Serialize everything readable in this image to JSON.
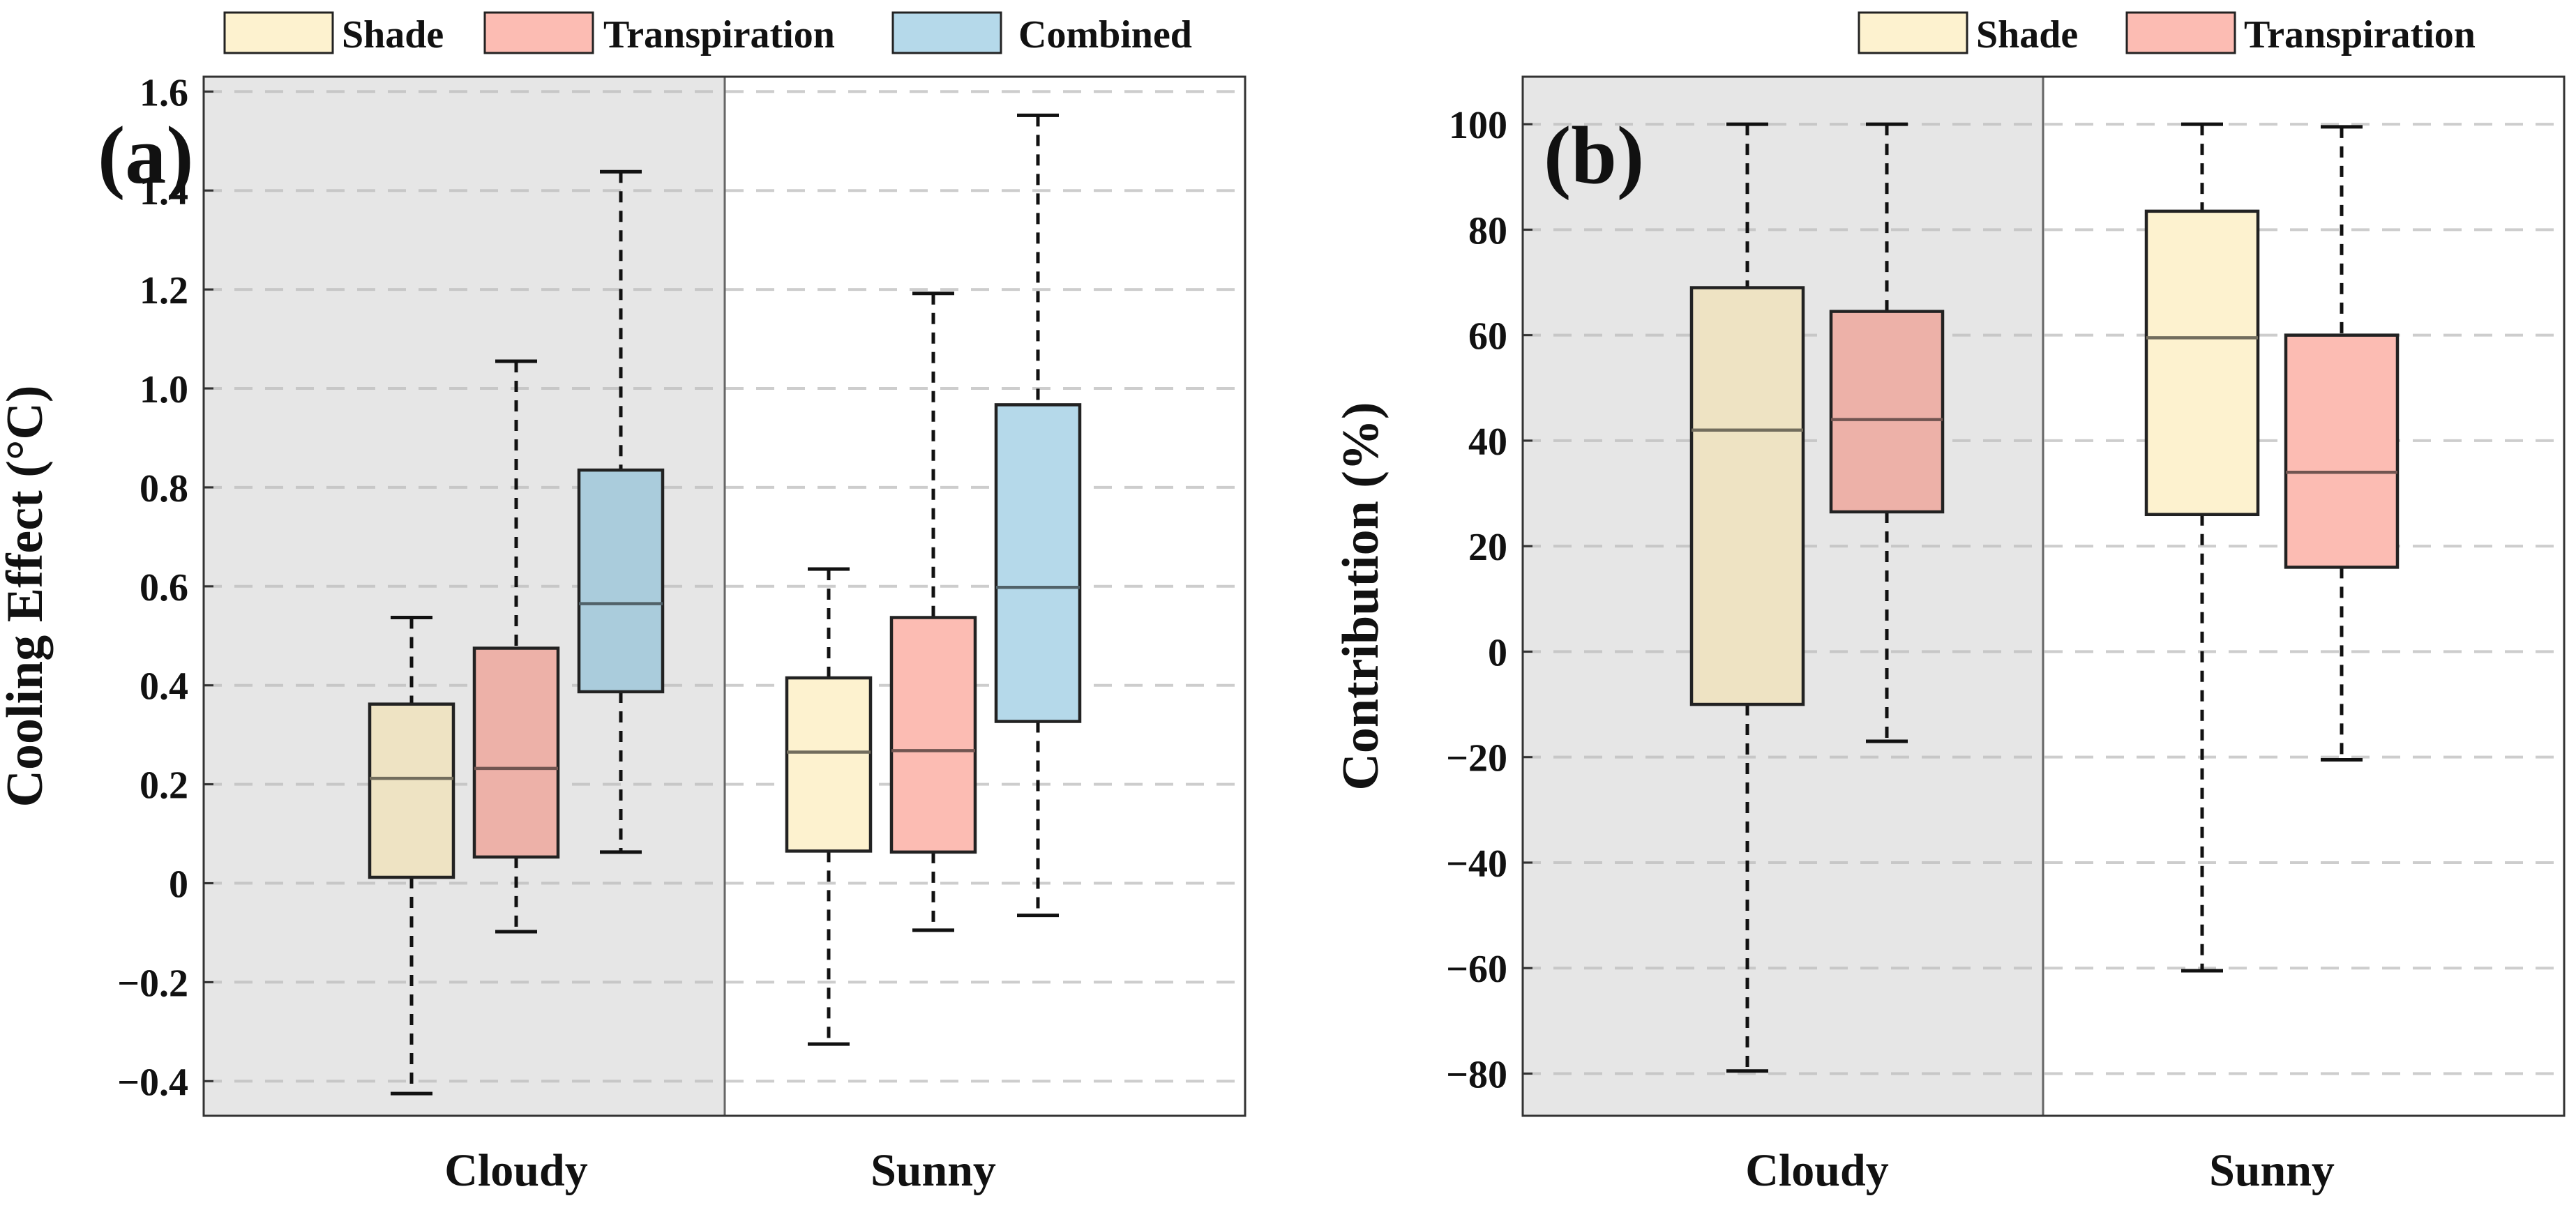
{
  "colors": {
    "Shade": "#fdf2cf",
    "Transpiration": "#fcbcb3",
    "Combined": "#b5d9ea",
    "cloudy_region": "#e6e6e6",
    "sunny_region": "#ffffff"
  },
  "chart_data": [
    {
      "type": "boxplot",
      "panel_label": "(a)",
      "ylabel": "Cooling Effect (°C)",
      "xlabel": "",
      "ylim": [
        -0.47,
        1.63
      ],
      "yticks": [
        -0.4,
        -0.2,
        0,
        0.2,
        0.4,
        0.6,
        0.8,
        1.0,
        1.2,
        1.4,
        1.6
      ],
      "ytick_labels": [
        "−0.4",
        "−0.2",
        "0",
        "0.2",
        "0.4",
        "0.6",
        "0.8",
        "1.0",
        "1.2",
        "1.4",
        "1.6"
      ],
      "categories": [
        "Cloudy",
        "Sunny"
      ],
      "shaded_category": "Cloudy",
      "legend": [
        "Shade",
        "Transpiration",
        "Combined"
      ],
      "legend_position": "top",
      "grid": "horizontal dashed",
      "series": [
        {
          "name": "Shade",
          "boxes": [
            {
              "category": "Cloudy",
              "min": -0.425,
              "q1": 0.012,
              "median": 0.212,
              "q3": 0.362,
              "max": 0.537
            },
            {
              "category": "Sunny",
              "min": -0.325,
              "q1": 0.065,
              "median": 0.265,
              "q3": 0.415,
              "max": 0.635
            }
          ]
        },
        {
          "name": "Transpiration",
          "boxes": [
            {
              "category": "Cloudy",
              "min": -0.098,
              "q1": 0.053,
              "median": 0.232,
              "q3": 0.475,
              "max": 1.055
            },
            {
              "category": "Sunny",
              "min": -0.095,
              "q1": 0.063,
              "median": 0.268,
              "q3": 0.537,
              "max": 1.192
            }
          ]
        },
        {
          "name": "Combined",
          "boxes": [
            {
              "category": "Cloudy",
              "min": 0.063,
              "q1": 0.387,
              "median": 0.565,
              "q3": 0.835,
              "max": 1.438
            },
            {
              "category": "Sunny",
              "min": -0.065,
              "q1": 0.327,
              "median": 0.598,
              "q3": 0.967,
              "max": 1.552
            }
          ]
        }
      ]
    },
    {
      "type": "boxplot",
      "panel_label": "(b)",
      "ylabel": "Contribution (%)",
      "xlabel": "",
      "ylim": [
        -88,
        109
      ],
      "yticks": [
        -80,
        -60,
        -40,
        -20,
        0,
        20,
        40,
        60,
        80,
        100
      ],
      "ytick_labels": [
        "−80",
        "−60",
        "−40",
        "−20",
        "0",
        "20",
        "40",
        "60",
        "80",
        "100"
      ],
      "categories": [
        "Cloudy",
        "Sunny"
      ],
      "shaded_category": "Cloudy",
      "legend": [
        "Shade",
        "Transpiration"
      ],
      "legend_position": "top-right",
      "grid": "horizontal dashed",
      "series": [
        {
          "name": "Shade",
          "boxes": [
            {
              "category": "Cloudy",
              "min": -79.5,
              "q1": -10,
              "median": 42,
              "q3": 69,
              "max": 100
            },
            {
              "category": "Sunny",
              "min": -60.5,
              "q1": 26,
              "median": 59.5,
              "q3": 83.5,
              "max": 100
            }
          ]
        },
        {
          "name": "Transpiration",
          "boxes": [
            {
              "category": "Cloudy",
              "min": -17,
              "q1": 26.5,
              "median": 44,
              "q3": 64.5,
              "max": 100
            },
            {
              "category": "Sunny",
              "min": -20.5,
              "q1": 16,
              "median": 34,
              "q3": 60,
              "max": 99.5
            }
          ]
        }
      ]
    }
  ]
}
